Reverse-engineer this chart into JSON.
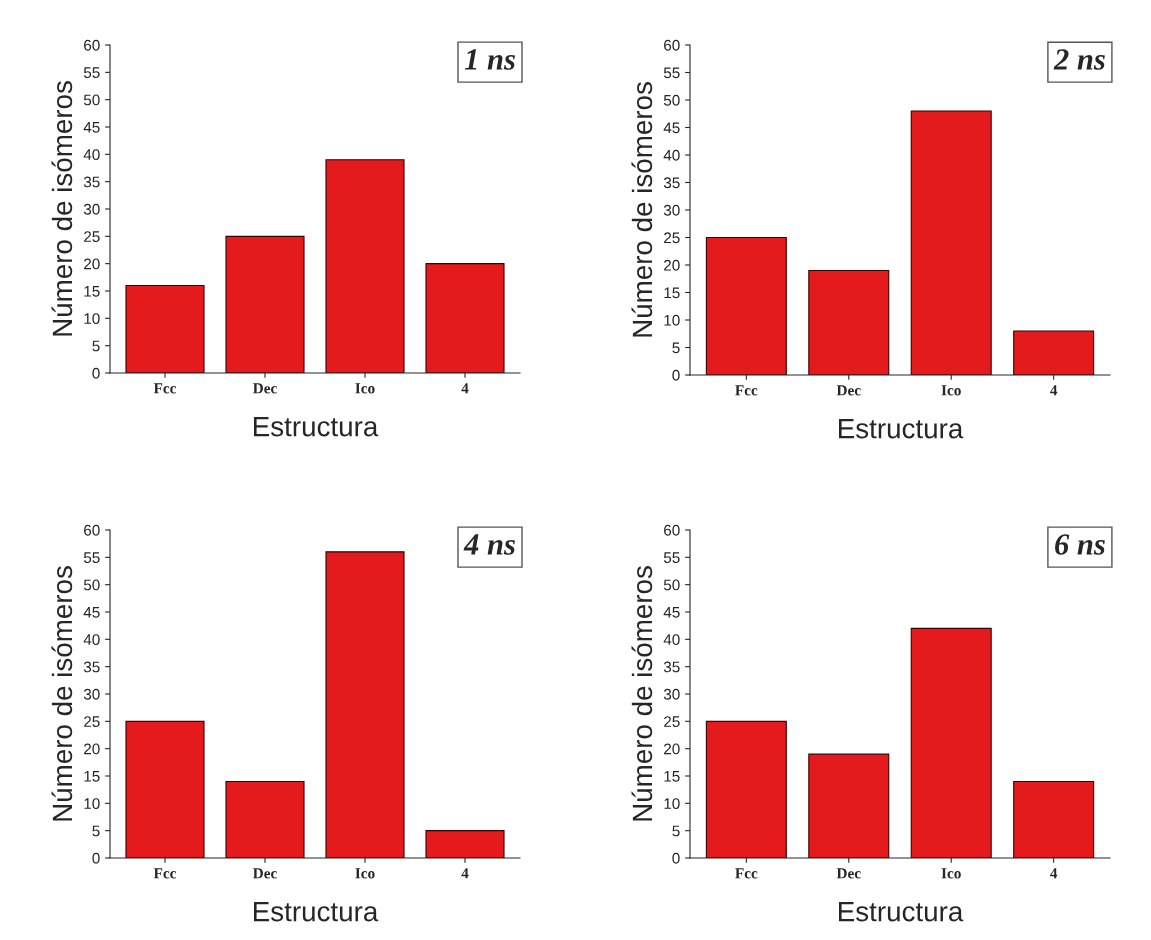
{
  "chart_data": [
    {
      "type": "bar",
      "title": "1 ns",
      "xlabel": "Estructura",
      "ylabel": "Número de isómeros",
      "categories": [
        "Fcc",
        "Dec",
        "Ico",
        "4"
      ],
      "values": [
        16,
        25,
        39,
        20
      ],
      "color": "#e41a1c",
      "ylim": [
        0,
        60
      ],
      "yticks": [
        0,
        5,
        10,
        15,
        20,
        25,
        30,
        35,
        40,
        45,
        50,
        55,
        60
      ],
      "grid": false,
      "legend": false
    },
    {
      "type": "bar",
      "title": "2 ns",
      "xlabel": "Estructura",
      "ylabel": "Número de isómeros",
      "categories": [
        "Fcc",
        "Dec",
        "Ico",
        "4"
      ],
      "values": [
        25,
        19,
        48,
        8
      ],
      "color": "#e41a1c",
      "ylim": [
        0,
        60
      ],
      "yticks": [
        0,
        5,
        10,
        15,
        20,
        25,
        30,
        35,
        40,
        45,
        50,
        55,
        60
      ],
      "grid": false,
      "legend": false
    },
    {
      "type": "bar",
      "title": "4 ns",
      "xlabel": "Estructura",
      "ylabel": "Número de isómeros",
      "categories": [
        "Fcc",
        "Dec",
        "Ico",
        "4"
      ],
      "values": [
        25,
        14,
        56,
        5
      ],
      "color": "#e41a1c",
      "ylim": [
        0,
        60
      ],
      "yticks": [
        0,
        5,
        10,
        15,
        20,
        25,
        30,
        35,
        40,
        45,
        50,
        55,
        60
      ],
      "grid": false,
      "legend": false
    },
    {
      "type": "bar",
      "title": "6 ns",
      "xlabel": "Estructura",
      "ylabel": "Número de isómeros",
      "categories": [
        "Fcc",
        "Dec",
        "Ico",
        "4"
      ],
      "values": [
        25,
        19,
        42,
        14
      ],
      "color": "#e41a1c",
      "ylim": [
        0,
        60
      ],
      "yticks": [
        0,
        5,
        10,
        15,
        20,
        25,
        30,
        35,
        40,
        45,
        50,
        55,
        60
      ],
      "grid": false,
      "legend": false
    }
  ]
}
